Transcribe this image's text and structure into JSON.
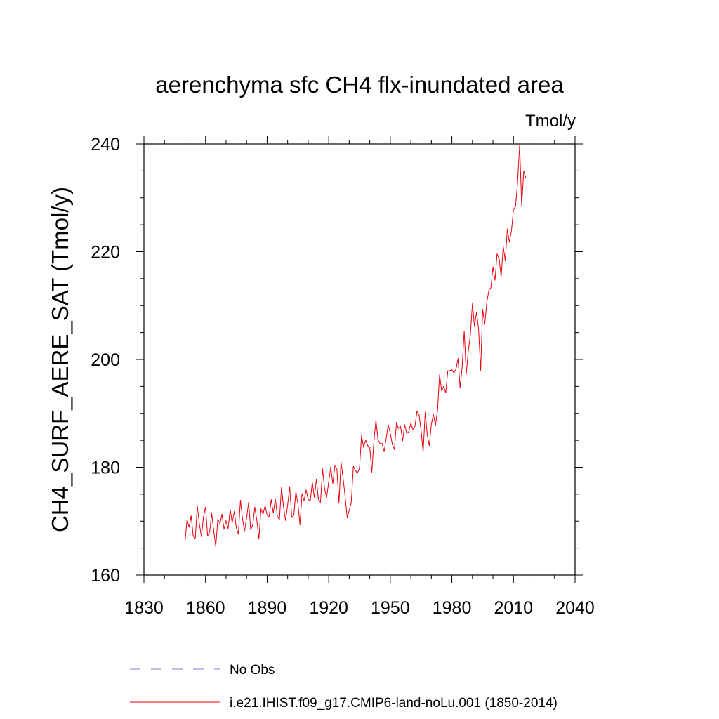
{
  "chart_data": {
    "type": "line",
    "title": "aerenchyma sfc CH4 flx-inundated area",
    "units": "Tmol/y",
    "ylabel": "CH4_SURF_AERE_SAT  (Tmol/y)",
    "xlabel": "",
    "xlim": [
      1830,
      2040
    ],
    "ylim": [
      160,
      240
    ],
    "x_ticks": [
      1830,
      1860,
      1890,
      1920,
      1950,
      1980,
      2010,
      2040
    ],
    "y_ticks": [
      160,
      180,
      200,
      220,
      240
    ],
    "x_tick_labels": [
      "1830",
      "1860",
      "1890",
      "1920",
      "1950",
      "1980",
      "2010",
      "2040"
    ],
    "y_tick_labels": [
      "160",
      "180",
      "200",
      "220",
      "240"
    ],
    "grid": false,
    "legend_position": "bottom",
    "legend": [
      {
        "label": "No Obs",
        "color": "#7f7fd0",
        "style": "dashed"
      },
      {
        "label": "i.e21.IHIST.f09_g17.CMIP6-land-noLu.001 (1850-2014)",
        "color": "#e8000b",
        "style": "solid"
      }
    ],
    "series": [
      {
        "name": "i.e21.IHIST.f09_g17.CMIP6-land-noLu.001 (1850-2014)",
        "color": "#e8000b",
        "x_start": 1850,
        "values": [
          166.2,
          170.3,
          168.9,
          171.0,
          167.2,
          166.8,
          172.8,
          169.5,
          167.1,
          170.8,
          172.6,
          167.3,
          168.0,
          171.4,
          168.2,
          165.3,
          170.4,
          169.5,
          171.3,
          168.5,
          170.1,
          168.6,
          172.2,
          169.7,
          171.8,
          168.8,
          167.6,
          173.9,
          170.5,
          168.2,
          170.6,
          173.5,
          168.4,
          169.3,
          172.6,
          170.1,
          166.7,
          172.3,
          171.3,
          172.9,
          171.1,
          170.8,
          174.0,
          171.5,
          174.2,
          170.9,
          170.3,
          176.3,
          172.6,
          170.1,
          173.0,
          176.4,
          170.7,
          171.1,
          175.5,
          173.2,
          169.4,
          175.1,
          173.8,
          175.8,
          174.1,
          173.7,
          177.2,
          174.4,
          177.8,
          174.0,
          173.5,
          179.7,
          176.0,
          174.4,
          177.3,
          180.1,
          176.9,
          180.4,
          179.6,
          173.4,
          181.0,
          178.0,
          174.6,
          170.6,
          172.0,
          173.5,
          180.2,
          179.4,
          178.9,
          179.9,
          185.9,
          183.7,
          185.0,
          184.0,
          183.7,
          179.1,
          184.8,
          188.8,
          185.1,
          184.4,
          184.4,
          182.9,
          185.4,
          187.9,
          186.3,
          184.2,
          183.3,
          188.3,
          187.2,
          187.6,
          184.9,
          187.9,
          186.3,
          186.6,
          188.2,
          187.0,
          187.6,
          190.4,
          189.8,
          186.8,
          182.8,
          190.2,
          186.0,
          184.0,
          188.0,
          189.8,
          187.8,
          190.5,
          197.2,
          194.2,
          195.0,
          193.8,
          197.9,
          197.9,
          198.1,
          197.5,
          198.2,
          200.2,
          194.7,
          198.6,
          205.3,
          197.4,
          201.6,
          204.6,
          210.4,
          206.1,
          208.8,
          205.7,
          198.0,
          209.3,
          206.5,
          210.6,
          212.8,
          213.3,
          217.2,
          214.7,
          219.6,
          218.7,
          215.3,
          221.0,
          218.3,
          224.2,
          221.8,
          223.8,
          227.9,
          228.4,
          232.9,
          239.8,
          228.5,
          235.0,
          233.7
        ]
      }
    ]
  }
}
